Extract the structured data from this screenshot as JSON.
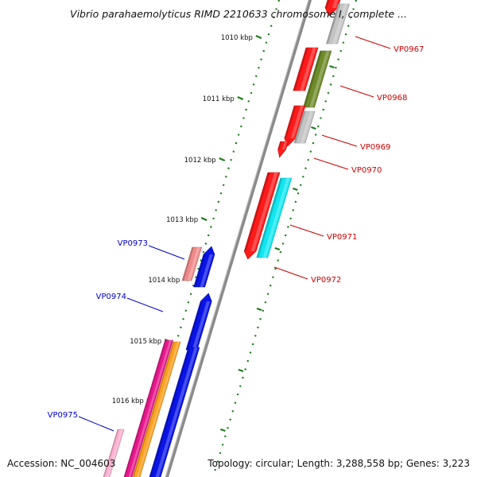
{
  "map": {
    "title": "Vibrio parahaemolyticus RIMD 2210633 chromosome I, complete ...",
    "accession": "Accession: NC_004603",
    "topology": "Topology: circular; Length: 3,288,558 bp; Genes: 3,223"
  },
  "ticks": [
    "1010 kbp",
    "1011 kbp",
    "1012 kbp",
    "1013 kbp",
    "1014 kbp",
    "1015 kbp",
    "1016 kbp"
  ],
  "genes": {
    "forward": [
      "VP0967",
      "VP0968",
      "VP0969",
      "VP0970",
      "VP0971",
      "VP0972"
    ],
    "reverse": [
      "VP0973",
      "VP0974",
      "VP0975"
    ]
  },
  "colors": {
    "forward_label": "#cc0000",
    "reverse_label": "#0000cc",
    "tick": "#1a7a1a",
    "backbone": "#8a8a8a",
    "red": "#ff1a1a",
    "gray": "#c4c4c4",
    "olive": "#6e8c2a",
    "cyan": "#12e6f0",
    "salmon": "#f08a8a",
    "blue": "#0a14e6",
    "magenta": "#e6188c",
    "orange": "#ffa020",
    "pink": "#ffb0d0"
  }
}
